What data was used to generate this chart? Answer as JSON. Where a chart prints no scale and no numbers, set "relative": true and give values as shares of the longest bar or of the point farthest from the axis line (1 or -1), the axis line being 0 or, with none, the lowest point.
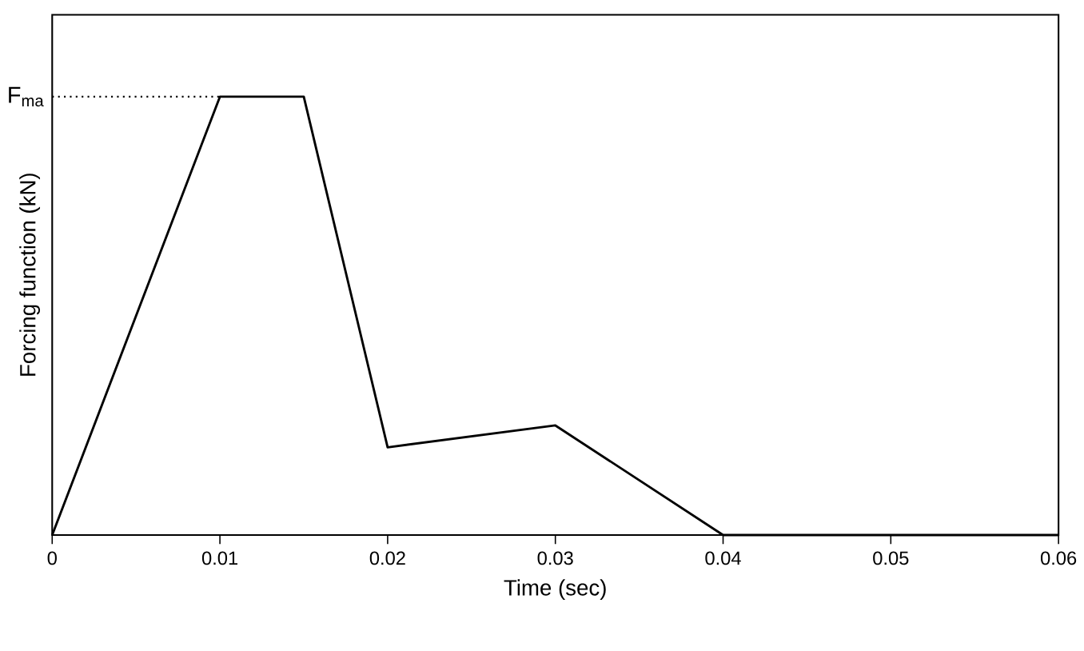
{
  "chart_data": {
    "type": "line",
    "relative": true,
    "xlabel": "Time (sec)",
    "ylabel": "Forcing function (kN)",
    "x": [
      0,
      0.01,
      0.015,
      0.02,
      0.03,
      0.04,
      0.06
    ],
    "values": [
      0,
      1,
      1,
      0.2,
      0.25,
      0,
      0
    ],
    "color": "#000000",
    "xlim": [
      0,
      0.06
    ],
    "xticks": [
      0,
      0.01,
      0.02,
      0.03,
      0.04,
      0.05,
      0.06
    ],
    "tick_labels": "x",
    "ref_lines": [
      {
        "axis": "y",
        "value": 1,
        "label": "F$_{ma}$",
        "line_style": "dotted"
      }
    ]
  }
}
